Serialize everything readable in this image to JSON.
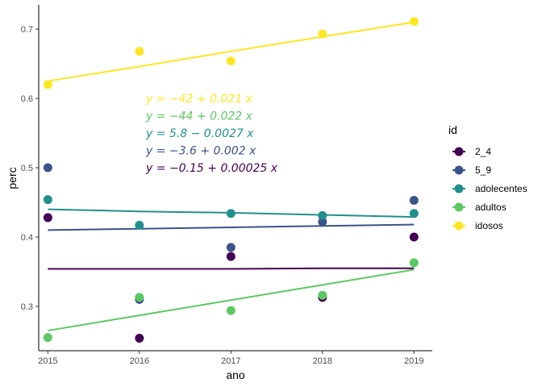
{
  "chart_data": {
    "type": "scatter",
    "xlabel": "ano",
    "ylabel": "perc",
    "x": [
      2015,
      2016,
      2017,
      2018,
      2019
    ],
    "x_ticks": [
      "2015",
      "2016",
      "2017",
      "2018",
      "2019"
    ],
    "y_ticks": [
      "0.3",
      "0.4",
      "0.5",
      "0.6",
      "0.7"
    ],
    "xlim": [
      2014.9,
      2019.2
    ],
    "ylim": [
      0.236,
      0.735
    ],
    "grid": false,
    "legend_title": "id",
    "legend_position": "right",
    "series": [
      {
        "name": "2_4",
        "color": "#440154",
        "values": [
          0.428,
          0.254,
          0.372,
          0.313,
          0.4
        ],
        "equation": "y = −0.15 + 0.00025 x",
        "fit": [
          0.354,
          0.354,
          0.354,
          0.355,
          0.355
        ]
      },
      {
        "name": "5_9",
        "color": "#3B528B",
        "values": [
          0.5,
          0.31,
          0.385,
          0.422,
          0.453
        ],
        "equation": "y = −3.6 + 0.002 x",
        "fit": [
          0.41,
          0.412,
          0.414,
          0.416,
          0.418
        ]
      },
      {
        "name": "adolecentes",
        "color": "#21908C",
        "values": [
          0.454,
          0.417,
          0.434,
          0.431,
          0.434
        ],
        "equation": "y = 5.8 − 0.0027 x",
        "fit": [
          0.44,
          0.437,
          0.435,
          0.432,
          0.429
        ]
      },
      {
        "name": "adultos",
        "color": "#5DC863",
        "values": [
          0.255,
          0.313,
          0.294,
          0.316,
          0.363
        ],
        "equation": "y = −44 + 0.022 x",
        "fit": [
          0.265,
          0.287,
          0.309,
          0.331,
          0.353
        ]
      },
      {
        "name": "idosos",
        "color": "#FDE725",
        "values": [
          0.62,
          0.668,
          0.654,
          0.693,
          0.711
        ],
        "equation": "y = −42 + 0.021 x",
        "fit": [
          0.625,
          0.646,
          0.668,
          0.689,
          0.71
        ]
      }
    ]
  }
}
